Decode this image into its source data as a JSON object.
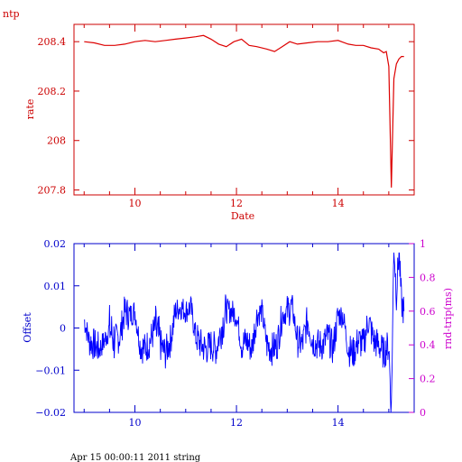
{
  "colors": {
    "top": "#cc0000",
    "bottom": "#0000cc",
    "right_axis": "#cc00cc",
    "offset_series": "#0000ff",
    "rate_series": "#dd0000"
  },
  "chart_data": [
    {
      "type": "line",
      "title": "ntp",
      "xlabel": "Date",
      "ylabel": "rate",
      "xlim": [
        8.8,
        15.5
      ],
      "ylim": [
        207.78,
        208.47
      ],
      "xticks": [
        10,
        12,
        14
      ],
      "xtick_labels": [
        "10",
        "12",
        "14"
      ],
      "yticks": [
        207.8,
        208.0,
        208.2,
        208.4
      ],
      "ytick_labels": [
        "207.8",
        "208",
        "208.2",
        "208.4"
      ],
      "grid": false,
      "series": [
        {
          "x": [
            9.0,
            9.2,
            9.4,
            9.6,
            9.8,
            10.0,
            10.2,
            10.4,
            10.6,
            10.8,
            11.0,
            11.2,
            11.35,
            11.5,
            11.65,
            11.8,
            11.95,
            12.1,
            12.25,
            12.4,
            12.6,
            12.75,
            12.9,
            13.05,
            13.2,
            13.4,
            13.6,
            13.8,
            14.0,
            14.2,
            14.35,
            14.5,
            14.65,
            14.8,
            14.9,
            14.95,
            15.0,
            15.05,
            15.1,
            15.15,
            15.2,
            15.25,
            15.3
          ],
          "y": [
            208.4,
            208.395,
            208.385,
            208.385,
            208.39,
            208.4,
            208.405,
            208.4,
            208.405,
            208.41,
            208.415,
            208.42,
            208.425,
            208.41,
            208.39,
            208.38,
            208.4,
            208.41,
            208.385,
            208.38,
            208.37,
            208.36,
            208.38,
            208.4,
            208.39,
            208.395,
            208.4,
            208.4,
            208.405,
            208.39,
            208.385,
            208.385,
            208.375,
            208.37,
            208.355,
            208.36,
            208.3,
            207.81,
            208.25,
            208.31,
            208.33,
            208.34,
            208.34
          ]
        }
      ]
    },
    {
      "type": "line",
      "xlabel": "",
      "ylabel": "Offset",
      "y2label": "rnd-trip(ms)",
      "xlim": [
        8.8,
        15.5
      ],
      "ylim": [
        -0.02,
        0.02
      ],
      "y2lim": [
        0,
        1
      ],
      "xticks": [
        10,
        12,
        14
      ],
      "xtick_labels": [
        "10",
        "12",
        "14"
      ],
      "yticks": [
        -0.02,
        -0.01,
        0,
        0.01,
        0.02
      ],
      "ytick_labels": [
        "−0.02",
        "−0.01",
        "0",
        "0.01",
        "0.02"
      ],
      "y2ticks": [
        0,
        0.2,
        0.4,
        0.6,
        0.8,
        1
      ],
      "y2tick_labels": [
        "0",
        "0.2",
        "0.4",
        "0.6",
        "0.8",
        "1"
      ],
      "grid": false,
      "series": [
        {
          "x": [
            9.0,
            9.1,
            9.2,
            9.3,
            9.4,
            9.5,
            9.6,
            9.7,
            9.8,
            9.9,
            10.0,
            10.1,
            10.2,
            10.3,
            10.4,
            10.5,
            10.6,
            10.7,
            10.8,
            10.9,
            11.0,
            11.1,
            11.2,
            11.3,
            11.4,
            11.5,
            11.6,
            11.7,
            11.8,
            11.9,
            12.0,
            12.1,
            12.2,
            12.3,
            12.4,
            12.5,
            12.6,
            12.7,
            12.8,
            12.9,
            13.0,
            13.1,
            13.2,
            13.3,
            13.4,
            13.5,
            13.6,
            13.7,
            13.8,
            13.9,
            14.0,
            14.1,
            14.2,
            14.3,
            14.4,
            14.5,
            14.6,
            14.7,
            14.8,
            14.9,
            15.0,
            15.05,
            15.1,
            15.15,
            15.2,
            15.25,
            15.3
          ],
          "y": [
            0.002,
            -0.003,
            -0.004,
            -0.005,
            -0.003,
            0.0,
            -0.003,
            -0.002,
            0.004,
            0.003,
            0.004,
            -0.004,
            -0.005,
            -0.003,
            0.0,
            -0.004,
            -0.006,
            -0.003,
            0.004,
            0.005,
            0.004,
            0.005,
            -0.002,
            -0.004,
            -0.005,
            -0.004,
            -0.005,
            0.0,
            0.004,
            0.004,
            0.003,
            -0.004,
            -0.003,
            -0.005,
            0.003,
            0.004,
            -0.004,
            -0.005,
            -0.004,
            0.003,
            0.004,
            0.005,
            -0.003,
            -0.004,
            0.002,
            -0.003,
            -0.004,
            -0.004,
            -0.002,
            -0.005,
            0.003,
            0.003,
            -0.005,
            -0.006,
            -0.003,
            -0.004,
            0.002,
            -0.003,
            -0.004,
            -0.006,
            -0.004,
            -0.02,
            0.02,
            0.008,
            0.018,
            0.006,
            0.004
          ],
          "spread": [
            0.003,
            0.004,
            0.004,
            0.003,
            0.003,
            0.006,
            0.004,
            0.004,
            0.004,
            0.003,
            0.003,
            0.004,
            0.004,
            0.004,
            0.006,
            0.004,
            0.004,
            0.004,
            0.003,
            0.003,
            0.003,
            0.003,
            0.004,
            0.004,
            0.004,
            0.004,
            0.004,
            0.005,
            0.003,
            0.003,
            0.003,
            0.004,
            0.004,
            0.004,
            0.003,
            0.003,
            0.004,
            0.004,
            0.004,
            0.003,
            0.004,
            0.003,
            0.004,
            0.004,
            0.004,
            0.004,
            0.004,
            0.004,
            0.004,
            0.004,
            0.003,
            0.003,
            0.004,
            0.004,
            0.004,
            0.004,
            0.004,
            0.004,
            0.004,
            0.004,
            0.005,
            0.004,
            0.004,
            0.004,
            0.004,
            0.004,
            0.003
          ]
        }
      ]
    }
  ],
  "footer": "Apr 15 00:00:11 2011 string"
}
